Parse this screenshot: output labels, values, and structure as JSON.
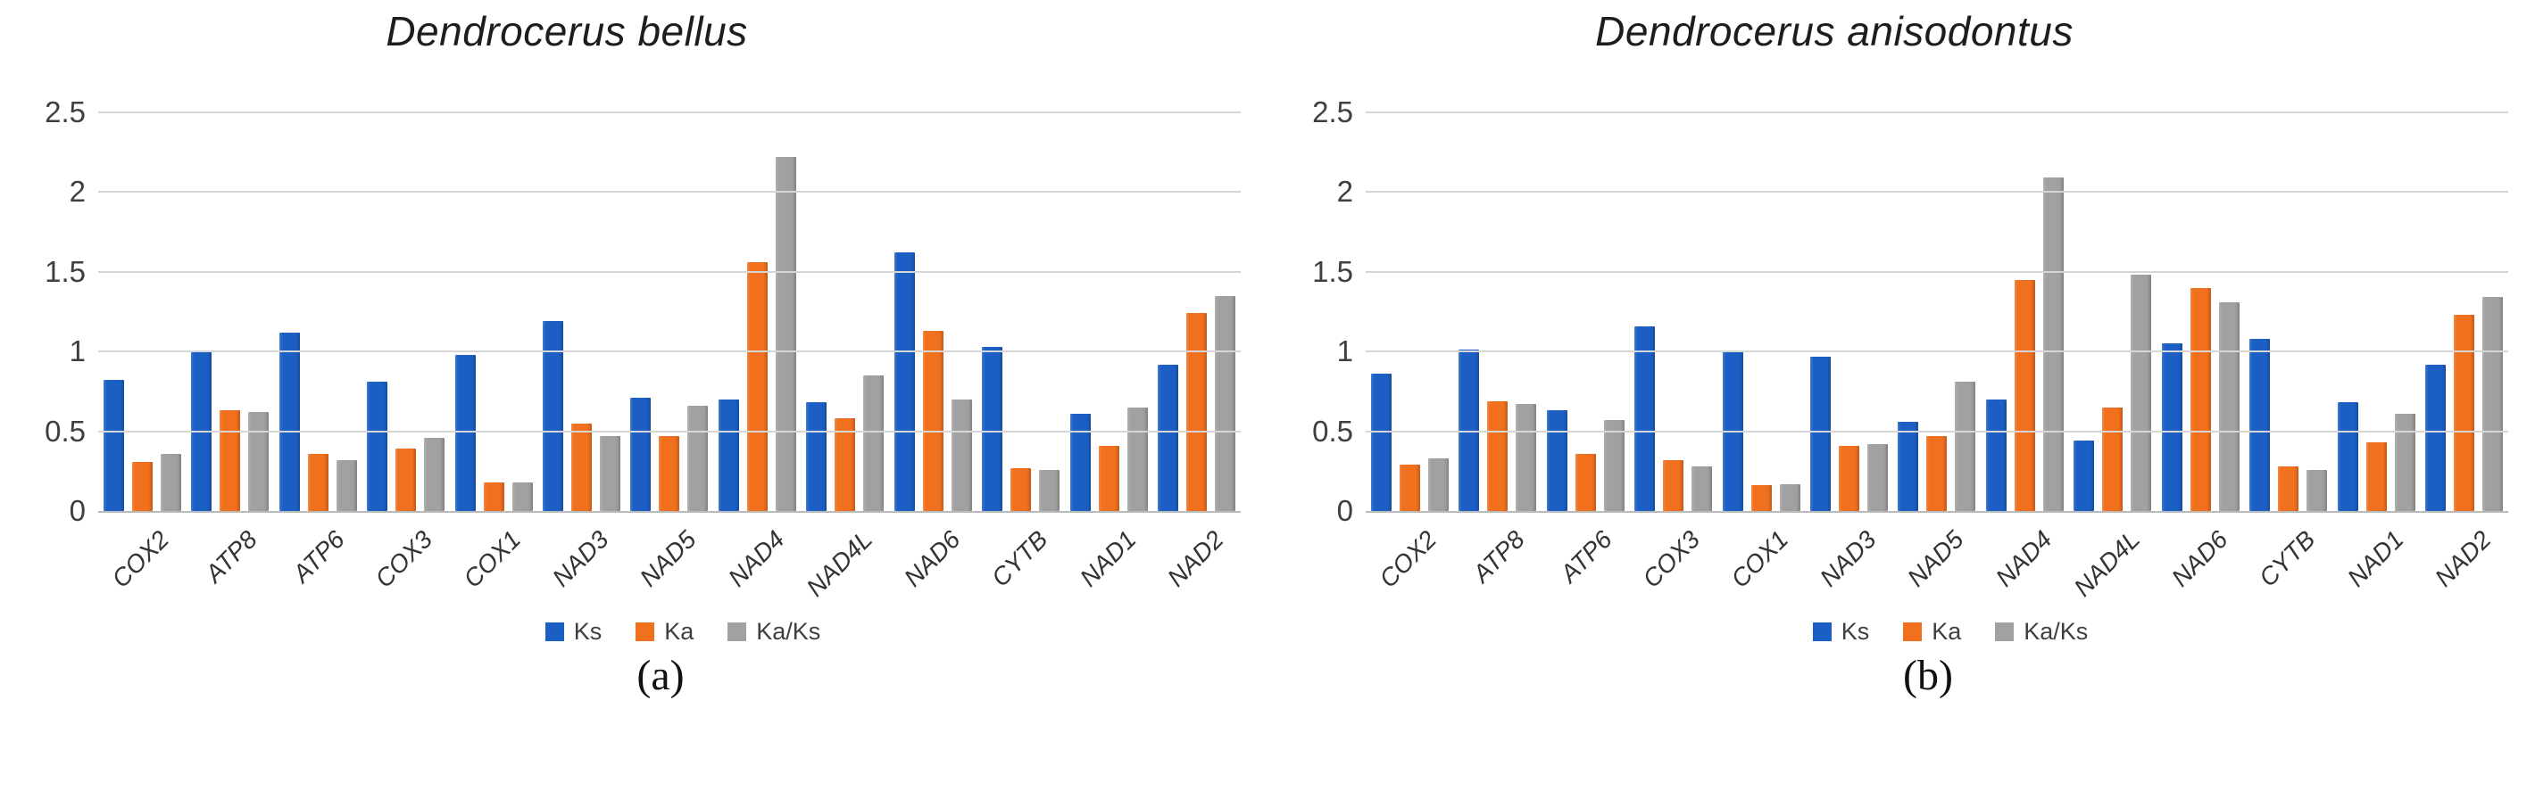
{
  "page": {
    "background": "#ffffff"
  },
  "palette": {
    "ks_blue": "#1c5fc4",
    "ka_orange": "#f0701e",
    "kaks_gray": "#a1a1a1",
    "gridline": "#d6d6d6",
    "axis": "#b9b9b9"
  },
  "chart_data": [
    {
      "type": "bar",
      "title": "Dendrocerus bellus",
      "caption": "(a)",
      "xlabel": "",
      "ylabel": "",
      "ylim": [
        0,
        2.5
      ],
      "yticks": [
        0,
        0.5,
        1,
        1.5,
        2,
        2.5
      ],
      "ytick_labels": [
        "0",
        "0.5",
        "1",
        "1.5",
        "2",
        "2.5"
      ],
      "grid": true,
      "legend_position": "bottom",
      "categories": [
        "COX2",
        "ATP8",
        "ATP6",
        "COX3",
        "COX1",
        "NAD3",
        "NAD5",
        "NAD4",
        "NAD4L",
        "NAD6",
        "CYTB",
        "NAD1",
        "NAD2"
      ],
      "series": [
        {
          "name": "Ks",
          "color": "#1c5fc4",
          "values": [
            0.82,
            1.0,
            1.12,
            0.81,
            0.98,
            1.19,
            0.71,
            0.7,
            0.68,
            1.62,
            1.03,
            0.61,
            0.92
          ]
        },
        {
          "name": "Ka",
          "color": "#f0701e",
          "values": [
            0.31,
            0.63,
            0.36,
            0.39,
            0.18,
            0.55,
            0.47,
            1.56,
            0.58,
            1.13,
            0.27,
            0.41,
            1.24
          ]
        },
        {
          "name": "Ka/Ks",
          "color": "#a1a1a1",
          "values": [
            0.36,
            0.62,
            0.32,
            0.46,
            0.18,
            0.47,
            0.66,
            2.22,
            0.85,
            0.7,
            0.26,
            0.65,
            1.35
          ]
        }
      ]
    },
    {
      "type": "bar",
      "title": "Dendrocerus anisodontus",
      "caption": "(b)",
      "xlabel": "",
      "ylabel": "",
      "ylim": [
        0,
        2.5
      ],
      "yticks": [
        0,
        0.5,
        1,
        1.5,
        2,
        2.5
      ],
      "ytick_labels": [
        "0",
        "0.5",
        "1",
        "1.5",
        "2",
        "2.5"
      ],
      "grid": true,
      "legend_position": "bottom",
      "categories": [
        "COX2",
        "ATP8",
        "ATP6",
        "COX3",
        "COX1",
        "NAD3",
        "NAD5",
        "NAD4",
        "NAD4L",
        "NAD6",
        "CYTB",
        "NAD1",
        "NAD2"
      ],
      "series": [
        {
          "name": "Ks",
          "color": "#1c5fc4",
          "values": [
            0.86,
            1.01,
            0.63,
            1.16,
            1.0,
            0.97,
            0.56,
            0.7,
            0.44,
            1.05,
            1.08,
            0.68,
            0.92
          ]
        },
        {
          "name": "Ka",
          "color": "#f0701e",
          "values": [
            0.29,
            0.69,
            0.36,
            0.32,
            0.16,
            0.41,
            0.47,
            1.45,
            0.65,
            1.4,
            0.28,
            0.43,
            1.23
          ]
        },
        {
          "name": "Ka/Ks",
          "color": "#a1a1a1",
          "values": [
            0.33,
            0.67,
            0.57,
            0.28,
            0.17,
            0.42,
            0.81,
            2.09,
            1.48,
            1.31,
            0.26,
            0.61,
            1.34
          ]
        }
      ]
    }
  ]
}
